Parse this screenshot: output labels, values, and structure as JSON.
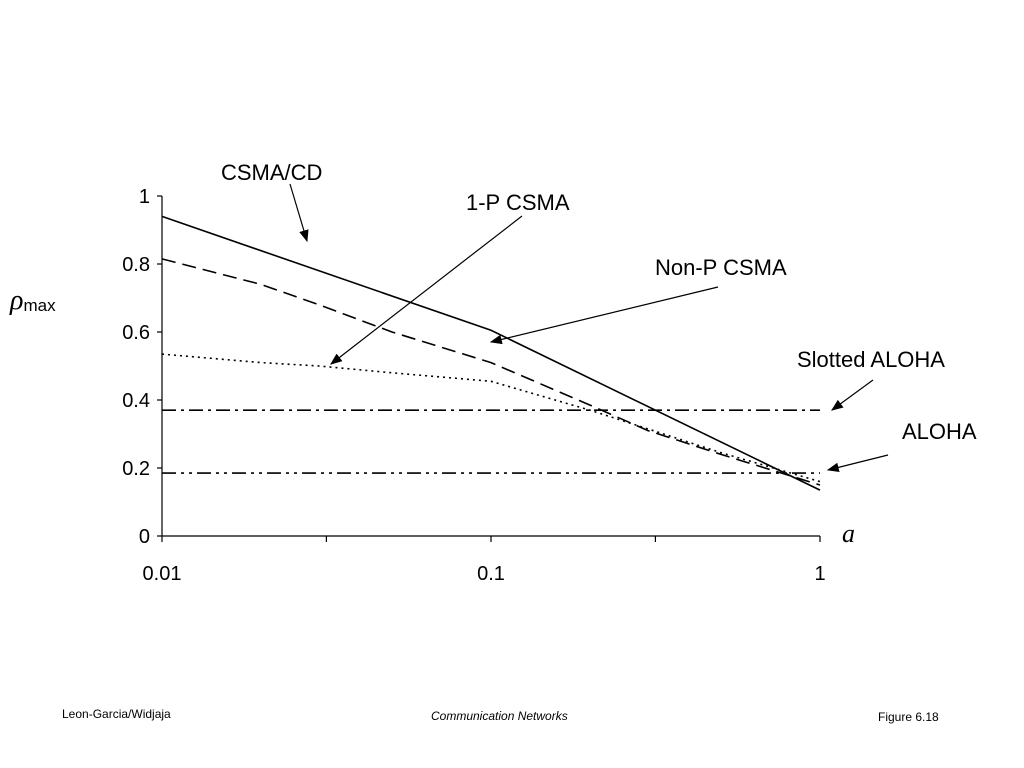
{
  "chart_data": {
    "type": "line",
    "x_scale": "log",
    "xlim": [
      0.01,
      1
    ],
    "ylim": [
      0,
      1
    ],
    "xlabel": "a",
    "ylabel": {
      "symbol": "ρ",
      "subscript": "max"
    },
    "x_ticks": [
      {
        "value": 0.01,
        "label": "0.01"
      },
      {
        "value": 0.1,
        "label": "0.1"
      },
      {
        "value": 1,
        "label": "1"
      }
    ],
    "x_minor_ticks": [
      0.0316,
      0.316
    ],
    "y_ticks": [
      {
        "value": 0,
        "label": "0"
      },
      {
        "value": 0.2,
        "label": "0.2"
      },
      {
        "value": 0.4,
        "label": "0.4"
      },
      {
        "value": 0.6,
        "label": "0.6"
      },
      {
        "value": 0.8,
        "label": "0.8"
      },
      {
        "value": 1,
        "label": "1"
      }
    ],
    "grid": false,
    "series": [
      {
        "name": "CSMA/CD",
        "style": "solid",
        "x": [
          0.01,
          0.1,
          1
        ],
        "y": [
          0.94,
          0.605,
          0.135
        ]
      },
      {
        "name": "Non-P CSMA",
        "style": "dashed",
        "x": [
          0.01,
          0.02,
          0.03,
          0.05,
          0.1,
          0.2,
          0.3,
          0.5,
          1
        ],
        "y": [
          0.815,
          0.74,
          0.68,
          0.6,
          0.51,
          0.385,
          0.31,
          0.24,
          0.15
        ]
      },
      {
        "name": "1-P CSMA",
        "style": "dotted",
        "x": [
          0.01,
          0.02,
          0.03,
          0.05,
          0.1,
          0.2,
          0.3,
          0.5,
          1
        ],
        "y": [
          0.535,
          0.51,
          0.5,
          0.48,
          0.455,
          0.37,
          0.315,
          0.245,
          0.16
        ]
      },
      {
        "name": "Slotted ALOHA",
        "style": "dashdot",
        "x": [
          0.01,
          1
        ],
        "y": [
          0.37,
          0.37
        ]
      },
      {
        "name": "ALOHA",
        "style": "dashdotdot",
        "x": [
          0.01,
          1
        ],
        "y": [
          0.185,
          0.185
        ]
      }
    ],
    "annotations": [
      {
        "text": "CSMA/CD",
        "target_series": "CSMA/CD"
      },
      {
        "text": "1-P CSMA",
        "target_series": "1-P CSMA"
      },
      {
        "text": "Non-P CSMA",
        "target_series": "Non-P CSMA"
      },
      {
        "text": "Slotted ALOHA",
        "target_series": "Slotted ALOHA"
      },
      {
        "text": "ALOHA",
        "target_series": "ALOHA"
      }
    ]
  },
  "footer": {
    "left": "Leon-Garcia/Widjaja",
    "center": "Communication Networks",
    "right": "Figure 6.18"
  }
}
